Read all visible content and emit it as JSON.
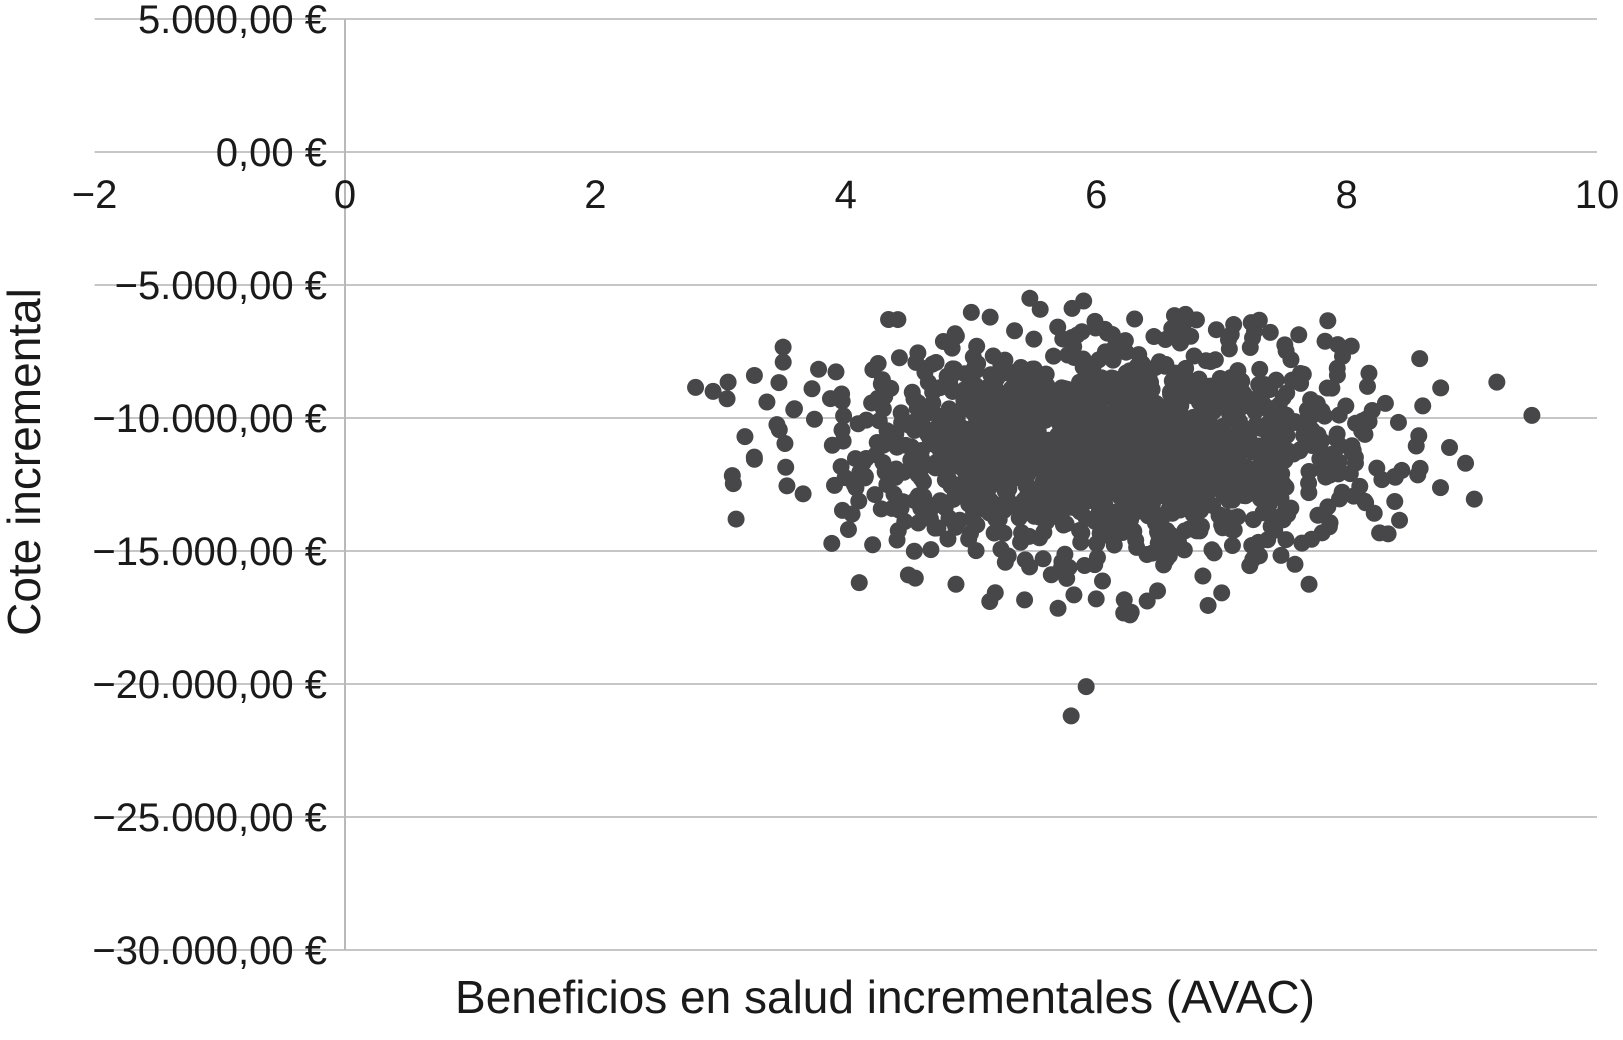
{
  "page": {
    "background": "#ffffff"
  },
  "chart_data": {
    "type": "scatter",
    "title": "",
    "xlabel": "Beneficios en salud incrementales (AVAC)",
    "ylabel": "Cote incremental",
    "xlim": [
      -2,
      10
    ],
    "ylim": [
      -30000,
      5000
    ],
    "x_ticks": [
      -2,
      0,
      2,
      4,
      6,
      8,
      10
    ],
    "x_tick_labels": [
      "−2",
      "0",
      "2",
      "4",
      "6",
      "8",
      "10"
    ],
    "y_ticks": [
      5000,
      0,
      -5000,
      -10000,
      -15000,
      -20000,
      -25000,
      -30000
    ],
    "y_tick_labels": [
      "5.000,00 €",
      "0,00 €",
      "−5.000,00 €",
      "−10.000,00 €",
      "−15.000,00 €",
      "−20.000,00 €",
      "−25.000,00 €",
      "−30.000,00 €"
    ],
    "grid": "horizontal-only",
    "legend": "none",
    "colors": {
      "marker": "#47474a",
      "grid": "#c6c6c6",
      "axis": "#b9b9b9",
      "text": "#1a1a1a"
    },
    "series": [
      {
        "marker": "circle",
        "marker_radius_px": 8.5,
        "n_points": 1500,
        "distribution_estimated_from_image": {
          "type": "bivariate-normal",
          "mean": [
            6.12,
            -11000
          ],
          "sd": [
            1.02,
            2000
          ],
          "x_range": [
            3.0,
            8.9
          ],
          "y_range": [
            -17600,
            -5800
          ],
          "seed": 7
        },
        "outlier_points": [
          [
            5.92,
            -20100
          ],
          [
            5.8,
            -21200
          ],
          [
            9.2,
            -8650
          ],
          [
            9.48,
            -9900
          ],
          [
            8.95,
            -11700
          ],
          [
            9.02,
            -13050
          ],
          [
            2.8,
            -8850
          ],
          [
            2.94,
            -9000
          ],
          [
            3.06,
            -8650
          ],
          [
            3.27,
            -8400
          ],
          [
            3.5,
            -7900
          ],
          [
            3.37,
            -9400
          ],
          [
            3.59,
            -9650
          ],
          [
            3.27,
            -11550
          ],
          [
            3.53,
            -12550
          ],
          [
            3.52,
            -11850
          ],
          [
            3.73,
            -8900
          ],
          [
            3.45,
            -10250
          ],
          [
            4.5,
            -15900
          ],
          [
            4.88,
            -16250
          ],
          [
            5.15,
            -16900
          ],
          [
            6.0,
            -16800
          ],
          [
            6.27,
            -17400
          ],
          [
            6.49,
            -16500
          ],
          [
            7.7,
            -16250
          ],
          [
            5.47,
            -5500
          ],
          [
            5.9,
            -5600
          ]
        ]
      }
    ]
  }
}
